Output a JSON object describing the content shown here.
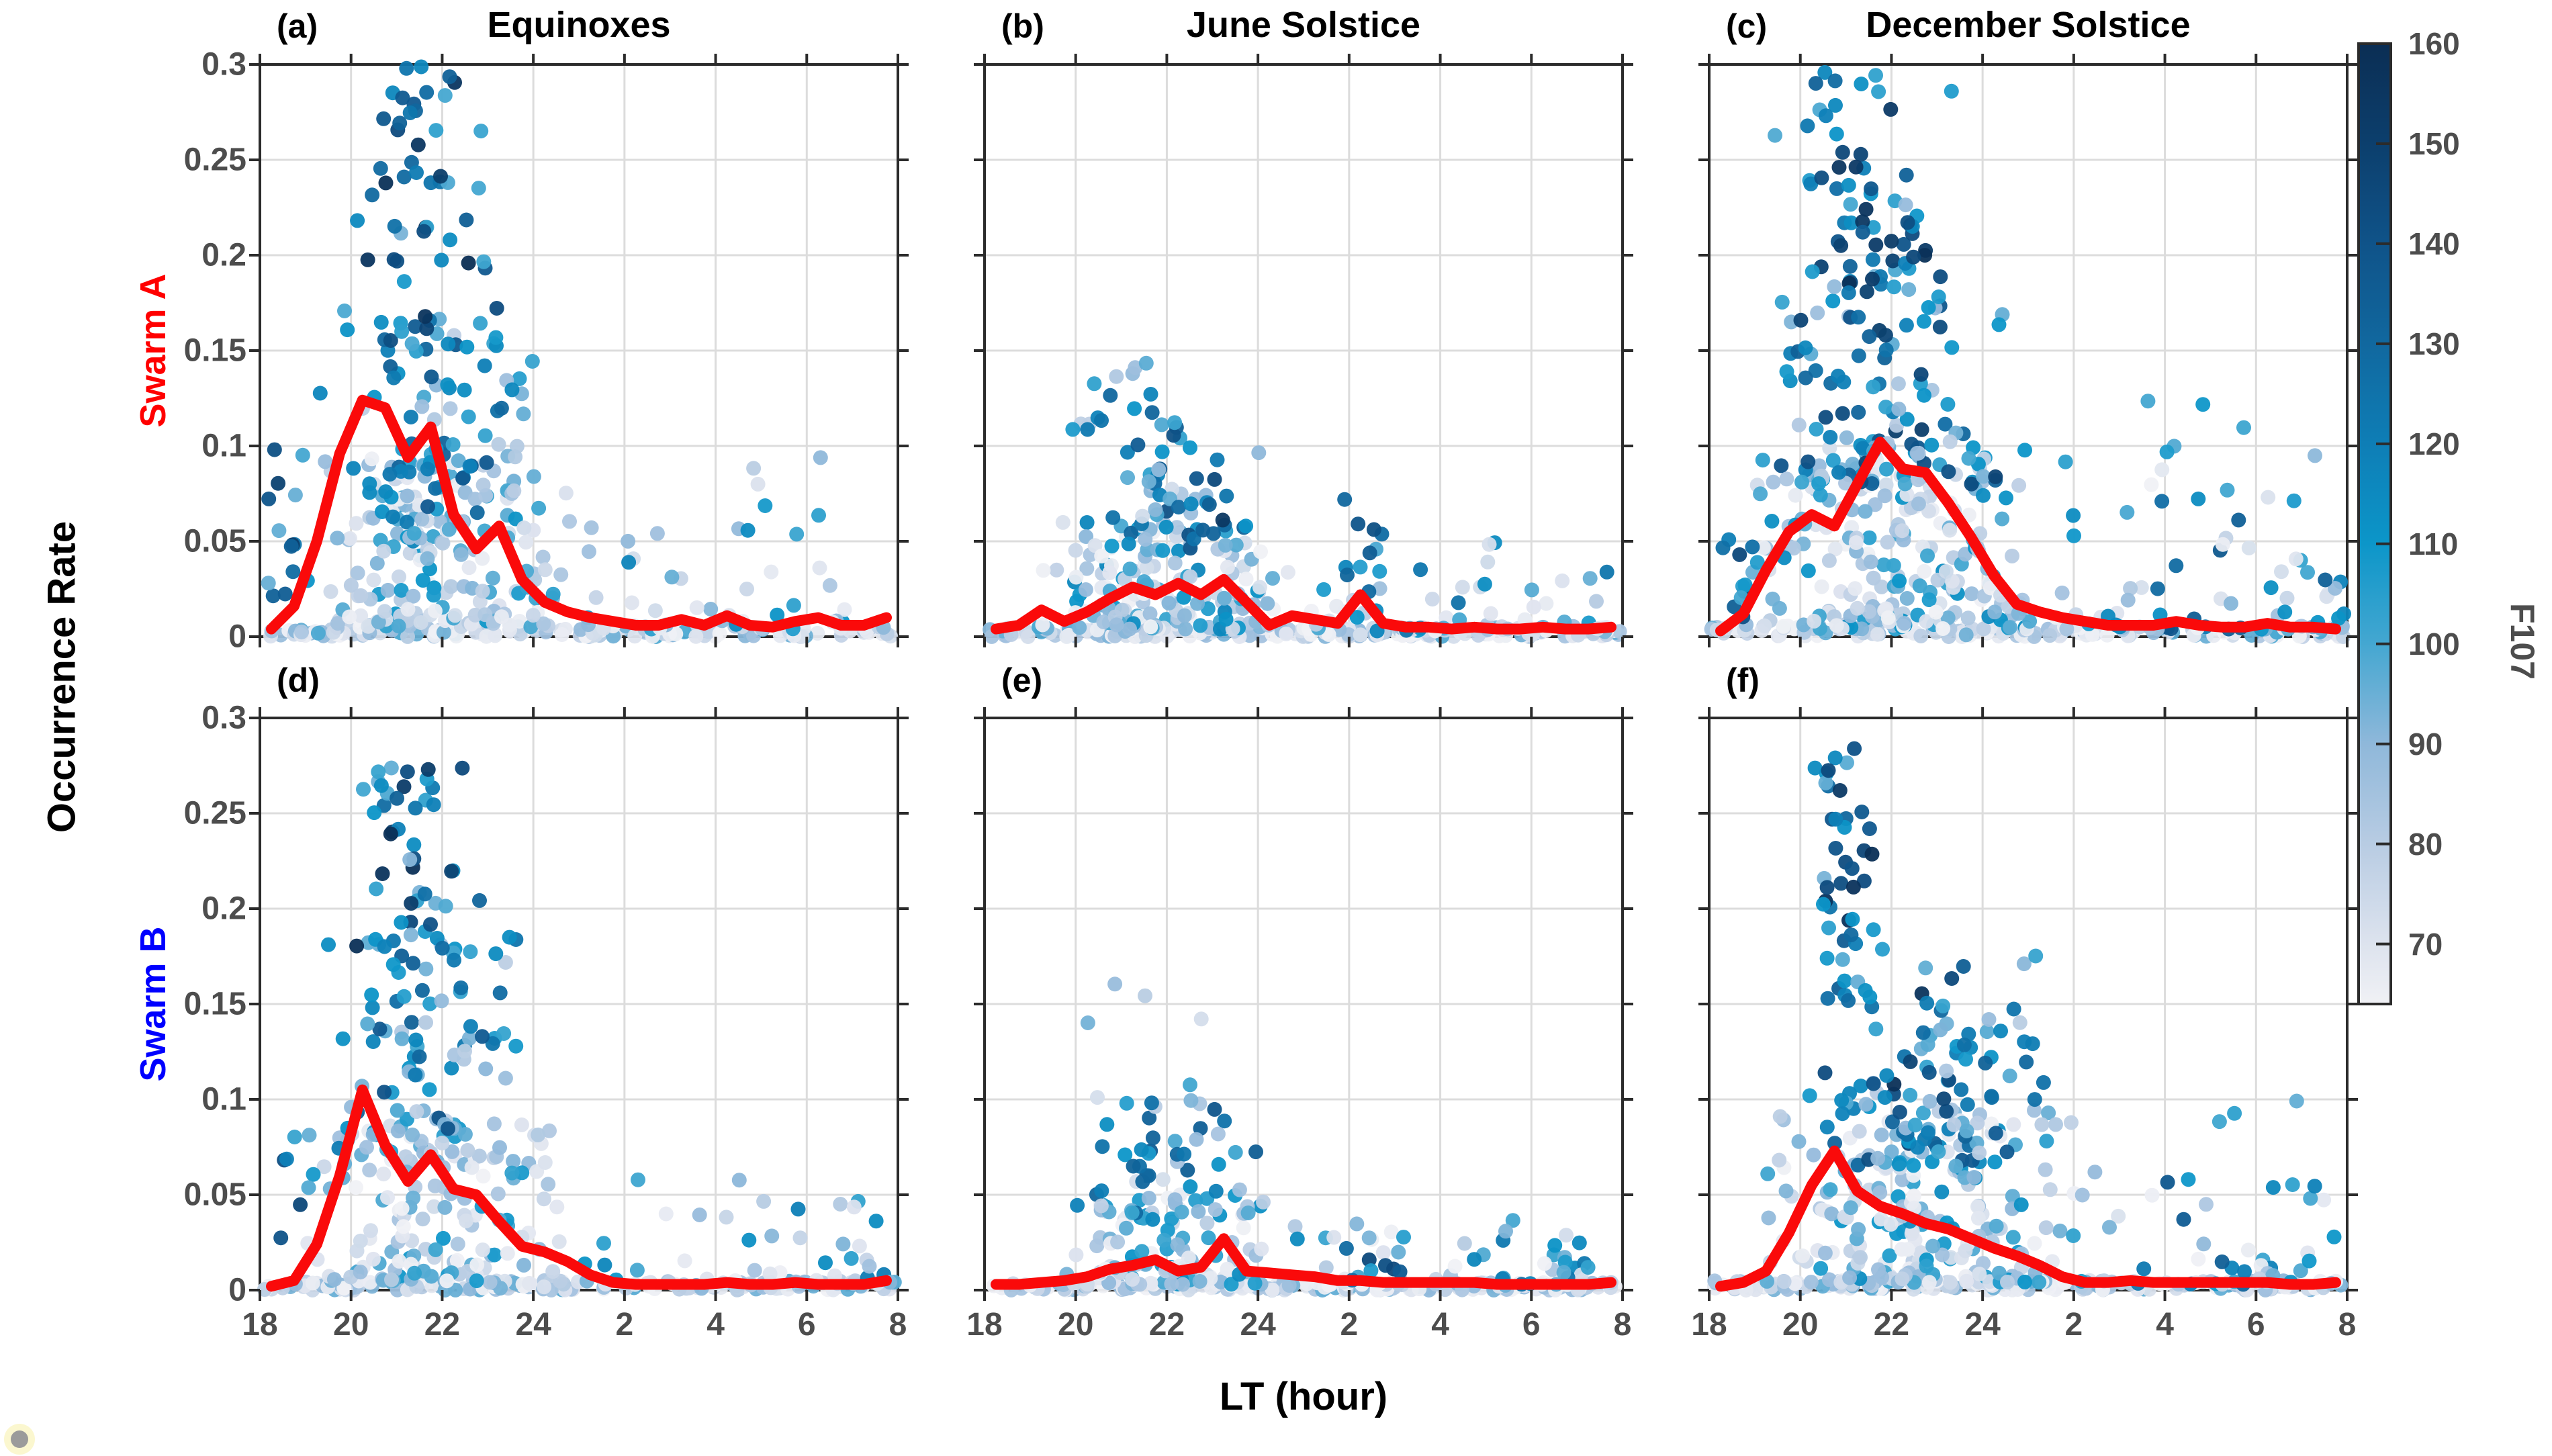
{
  "chart_data": {
    "type": "scatter",
    "xlabel": "LT (hour)",
    "ylabel": "Occurrence Rate",
    "xlim": [
      18,
      32
    ],
    "ylim": [
      0,
      0.3
    ],
    "grid": true,
    "x_ticks": {
      "values": [
        18,
        20,
        22,
        24,
        26,
        28,
        30,
        32
      ],
      "labels": [
        "18",
        "20",
        "22",
        "24",
        "2",
        "4",
        "6",
        "8"
      ]
    },
    "y_ticks": {
      "values": [
        0,
        0.05,
        0.1,
        0.15,
        0.2,
        0.25,
        0.3
      ],
      "labels": [
        "0",
        "0.05",
        "0.1",
        "0.15",
        "0.2",
        "0.25",
        "0.3"
      ]
    },
    "rows": [
      {
        "label": "Swarm A",
        "color": "#ff0000"
      },
      {
        "label": "Swarm B",
        "color": "#0000ff"
      }
    ],
    "columns": [
      {
        "title": "Equinoxes"
      },
      {
        "title": "June Solstice"
      },
      {
        "title": "December Solstice"
      }
    ],
    "colors": {
      "axis": "#2b2b2b",
      "grid": "#dcdcdc",
      "tick_text": "#4d4d4d",
      "red_line": "#fa0a0a",
      "background": "#ffffff"
    },
    "colorbar": {
      "label": "F107",
      "min": 64,
      "max": 160,
      "tick_values": [
        70,
        80,
        90,
        100,
        110,
        120,
        130,
        140,
        150,
        160
      ],
      "tick_labels": [
        "70",
        "80",
        "90",
        "100",
        "110",
        "120",
        "130",
        "140",
        "150",
        "160"
      ],
      "stops": [
        [
          64,
          "#f0f1f5"
        ],
        [
          70,
          "#dde3ee"
        ],
        [
          80,
          "#b8cce3"
        ],
        [
          90,
          "#8fb8da"
        ],
        [
          100,
          "#44a7d1"
        ],
        [
          110,
          "#0c96c9"
        ],
        [
          120,
          "#0e7eb6"
        ],
        [
          130,
          "#11689f"
        ],
        [
          140,
          "#0f5389"
        ],
        [
          150,
          "#0c3f6d"
        ],
        [
          160,
          "#0b2e54"
        ]
      ]
    },
    "red_line_x": [
      18.25,
      18.75,
      19.25,
      19.75,
      20.25,
      20.75,
      21.25,
      21.75,
      22.25,
      22.75,
      23.25,
      23.75,
      24.25,
      24.75,
      25.25,
      25.75,
      26.25,
      26.75,
      27.25,
      27.75,
      28.25,
      28.75,
      29.25,
      29.75,
      30.25,
      30.75,
      31.25,
      31.75
    ],
    "panels": [
      {
        "letter": "(a)",
        "row": 0,
        "col": 0,
        "seed": 101,
        "red_line_y": [
          0.004,
          0.016,
          0.05,
          0.096,
          0.124,
          0.12,
          0.094,
          0.11,
          0.064,
          0.046,
          0.058,
          0.03,
          0.018,
          0.013,
          0.01,
          0.008,
          0.006,
          0.006,
          0.009,
          0.006,
          0.011,
          0.006,
          0.005,
          0.008,
          0.01,
          0.006,
          0.006,
          0.01
        ],
        "scatter_clusters": [
          {
            "n": 160,
            "lt": [
              18.05,
              31.95
            ],
            "m": "u",
            "r": [
              0.0,
              0.006
            ],
            "rp": 1.2,
            "f": [
              64,
              100
            ],
            "fp": 1.6
          },
          {
            "n": 170,
            "lt": [
              18.9,
              25.2
            ],
            "m": "c",
            "r": [
              0.005,
              0.095
            ],
            "rp": 1.6,
            "f": [
              64,
              112
            ],
            "fp": 1.3
          },
          {
            "n": 95,
            "lt": [
              19.2,
              24.6
            ],
            "m": "c",
            "r": [
              0.05,
              0.175
            ],
            "rp": 1.3,
            "f": [
              78,
              138
            ],
            "fp": 1.1
          },
          {
            "n": 55,
            "lt": [
              19.4,
              23.4
            ],
            "m": "c",
            "r": [
              0.15,
              0.3
            ],
            "rp": 1.15,
            "f": [
              92,
              160
            ],
            "fp": 0.85
          },
          {
            "n": 45,
            "lt": [
              24.6,
              31.9
            ],
            "m": "u",
            "r": [
              0.004,
              0.095
            ],
            "rp": 2.2,
            "f": [
              66,
              122
            ],
            "fp": 1.4
          },
          {
            "n": 14,
            "lt": [
              18.1,
              19.1
            ],
            "m": "u",
            "r": [
              0.02,
              0.1
            ],
            "rp": 1.2,
            "f": [
              88,
              152
            ],
            "fp": 1.0
          }
        ]
      },
      {
        "letter": "(b)",
        "row": 0,
        "col": 1,
        "seed": 202,
        "red_line_y": [
          0.004,
          0.006,
          0.014,
          0.008,
          0.013,
          0.02,
          0.026,
          0.022,
          0.028,
          0.022,
          0.03,
          0.018,
          0.006,
          0.011,
          0.009,
          0.007,
          0.022,
          0.007,
          0.005,
          0.005,
          0.004,
          0.005,
          0.004,
          0.004,
          0.005,
          0.004,
          0.004,
          0.005
        ],
        "scatter_clusters": [
          {
            "n": 200,
            "lt": [
              18.05,
              31.95
            ],
            "m": "u",
            "r": [
              0.0,
              0.005
            ],
            "rp": 1.2,
            "f": [
              64,
              98
            ],
            "fp": 1.6
          },
          {
            "n": 150,
            "lt": [
              18.9,
              24.9
            ],
            "m": "c",
            "r": [
              0.004,
              0.06
            ],
            "rp": 1.7,
            "f": [
              64,
              118
            ],
            "fp": 1.4
          },
          {
            "n": 60,
            "lt": [
              19.7,
              24.4
            ],
            "m": "c",
            "r": [
              0.045,
              0.115
            ],
            "rp": 1.3,
            "f": [
              72,
              142
            ],
            "fp": 1.1
          },
          {
            "n": 12,
            "lt": [
              20.2,
              21.7
            ],
            "m": "u",
            "r": [
              0.108,
              0.148
            ],
            "rp": 1.0,
            "f": [
              78,
              138
            ],
            "fp": 1.0
          },
          {
            "n": 55,
            "lt": [
              24.9,
              31.95
            ],
            "m": "u",
            "r": [
              0.003,
              0.05
            ],
            "rp": 2.2,
            "f": [
              64,
              128
            ],
            "fp": 1.5
          },
          {
            "n": 9,
            "lt": [
              25.8,
              27.0
            ],
            "m": "u",
            "r": [
              0.01,
              0.075
            ],
            "rp": 1.3,
            "f": [
              96,
              152
            ],
            "fp": 0.9
          },
          {
            "n": 8,
            "lt": [
              22.5,
              23.5
            ],
            "m": "u",
            "r": [
              0.055,
              0.085
            ],
            "rp": 1.0,
            "f": [
              110,
              160
            ],
            "fp": 0.8
          }
        ]
      },
      {
        "letter": "(c)",
        "row": 0,
        "col": 2,
        "seed": 303,
        "red_line_y": [
          0.003,
          0.012,
          0.035,
          0.055,
          0.064,
          0.058,
          0.08,
          0.102,
          0.088,
          0.086,
          0.07,
          0.052,
          0.032,
          0.017,
          0.013,
          0.01,
          0.008,
          0.006,
          0.006,
          0.006,
          0.008,
          0.006,
          0.005,
          0.005,
          0.007,
          0.005,
          0.005,
          0.004
        ],
        "scatter_clusters": [
          {
            "n": 150,
            "lt": [
              18.05,
              31.95
            ],
            "m": "u",
            "r": [
              0.0,
              0.006
            ],
            "rp": 1.2,
            "f": [
              64,
              100
            ],
            "fp": 1.6
          },
          {
            "n": 230,
            "lt": [
              18.6,
              25.6
            ],
            "m": "c",
            "r": [
              0.004,
              0.1
            ],
            "rp": 1.6,
            "f": [
              64,
              115
            ],
            "fp": 1.3
          },
          {
            "n": 115,
            "lt": [
              19.0,
              24.8
            ],
            "m": "c",
            "r": [
              0.08,
              0.195
            ],
            "rp": 1.25,
            "f": [
              78,
              150
            ],
            "fp": 1.0
          },
          {
            "n": 60,
            "lt": [
              19.2,
              23.6
            ],
            "m": "c",
            "r": [
              0.18,
              0.3
            ],
            "rp": 1.1,
            "f": [
              88,
              160
            ],
            "fp": 0.9
          },
          {
            "n": 70,
            "lt": [
              25.6,
              31.95
            ],
            "m": "u",
            "r": [
              0.004,
              0.1
            ],
            "rp": 2.4,
            "f": [
              64,
              140
            ],
            "fp": 1.3
          },
          {
            "n": 10,
            "lt": [
              18.2,
              19.0
            ],
            "m": "u",
            "r": [
              0.01,
              0.06
            ],
            "rp": 1.2,
            "f": [
              90,
              155
            ],
            "fp": 0.9
          },
          {
            "n": 3,
            "lt": [
              27.2,
              30.4
            ],
            "m": "u",
            "r": [
              0.1,
              0.16
            ],
            "rp": 1.0,
            "f": [
              98,
              112
            ],
            "fp": 1.0
          }
        ]
      },
      {
        "letter": "(d)",
        "row": 1,
        "col": 0,
        "seed": 404,
        "red_line_y": [
          0.002,
          0.005,
          0.024,
          0.06,
          0.105,
          0.076,
          0.057,
          0.071,
          0.053,
          0.05,
          0.036,
          0.023,
          0.02,
          0.015,
          0.008,
          0.004,
          0.003,
          0.003,
          0.003,
          0.003,
          0.004,
          0.003,
          0.003,
          0.004,
          0.003,
          0.003,
          0.003,
          0.005
        ],
        "scatter_clusters": [
          {
            "n": 170,
            "lt": [
              18.05,
              31.95
            ],
            "m": "u",
            "r": [
              0.0,
              0.005
            ],
            "rp": 1.2,
            "f": [
              64,
              98
            ],
            "fp": 1.6
          },
          {
            "n": 150,
            "lt": [
              18.8,
              24.9
            ],
            "m": "c",
            "r": [
              0.004,
              0.09
            ],
            "rp": 1.6,
            "f": [
              64,
              110
            ],
            "fp": 1.3
          },
          {
            "n": 85,
            "lt": [
              19.3,
              24.0
            ],
            "m": "c",
            "r": [
              0.07,
              0.185
            ],
            "rp": 1.25,
            "f": [
              78,
              142
            ],
            "fp": 1.05
          },
          {
            "n": 50,
            "lt": [
              19.5,
              23.0
            ],
            "m": "c",
            "r": [
              0.17,
              0.275
            ],
            "rp": 1.1,
            "f": [
              88,
              160
            ],
            "fp": 0.9
          },
          {
            "n": 40,
            "lt": [
              24.9,
              31.95
            ],
            "m": "u",
            "r": [
              0.004,
              0.06
            ],
            "rp": 2.2,
            "f": [
              64,
              122
            ],
            "fp": 1.4
          },
          {
            "n": 8,
            "lt": [
              18.3,
              19.2
            ],
            "m": "u",
            "r": [
              0.02,
              0.085
            ],
            "rp": 1.2,
            "f": [
              92,
              150
            ],
            "fp": 0.9
          },
          {
            "n": 1,
            "lt": [
              28.5,
              28.7
            ],
            "m": "u",
            "r": [
              0.055,
              0.06
            ],
            "rp": 1.0,
            "f": [
              88,
              92
            ],
            "fp": 1.0
          }
        ]
      },
      {
        "letter": "(e)",
        "row": 1,
        "col": 1,
        "seed": 505,
        "red_line_y": [
          0.003,
          0.003,
          0.004,
          0.005,
          0.007,
          0.011,
          0.013,
          0.016,
          0.01,
          0.012,
          0.027,
          0.01,
          0.009,
          0.008,
          0.007,
          0.005,
          0.005,
          0.004,
          0.004,
          0.004,
          0.004,
          0.004,
          0.003,
          0.003,
          0.003,
          0.003,
          0.003,
          0.004
        ],
        "scatter_clusters": [
          {
            "n": 200,
            "lt": [
              18.05,
              31.95
            ],
            "m": "u",
            "r": [
              0.0,
              0.004
            ],
            "rp": 1.2,
            "f": [
              64,
              96
            ],
            "fp": 1.6
          },
          {
            "n": 115,
            "lt": [
              19.2,
              24.7
            ],
            "m": "c",
            "r": [
              0.003,
              0.05
            ],
            "rp": 1.7,
            "f": [
              64,
              116
            ],
            "fp": 1.4
          },
          {
            "n": 48,
            "lt": [
              19.7,
              24.2
            ],
            "m": "c",
            "r": [
              0.04,
              0.1
            ],
            "rp": 1.35,
            "f": [
              72,
              140
            ],
            "fp": 1.1
          },
          {
            "n": 6,
            "lt": [
              20.2,
              23.1
            ],
            "m": "u",
            "r": [
              0.1,
              0.19
            ],
            "rp": 1.0,
            "f": [
              72,
              108
            ],
            "fp": 1.2
          },
          {
            "n": 50,
            "lt": [
              24.7,
              31.95
            ],
            "m": "u",
            "r": [
              0.003,
              0.04
            ],
            "rp": 2.2,
            "f": [
              64,
              130
            ],
            "fp": 1.5
          },
          {
            "n": 6,
            "lt": [
              25.9,
              27.3
            ],
            "m": "u",
            "r": [
              0.008,
              0.035
            ],
            "rp": 1.2,
            "f": [
              98,
              148
            ],
            "fp": 0.9
          }
        ]
      },
      {
        "letter": "(f)",
        "row": 1,
        "col": 2,
        "seed": 606,
        "red_line_y": [
          0.002,
          0.004,
          0.01,
          0.03,
          0.055,
          0.073,
          0.052,
          0.044,
          0.04,
          0.035,
          0.032,
          0.027,
          0.022,
          0.018,
          0.013,
          0.007,
          0.004,
          0.004,
          0.005,
          0.004,
          0.004,
          0.004,
          0.004,
          0.004,
          0.004,
          0.003,
          0.003,
          0.004
        ],
        "scatter_clusters": [
          {
            "n": 170,
            "lt": [
              18.05,
              31.95
            ],
            "m": "u",
            "r": [
              0.0,
              0.005
            ],
            "rp": 1.2,
            "f": [
              64,
              98
            ],
            "fp": 1.6
          },
          {
            "n": 220,
            "lt": [
              18.8,
              26.6
            ],
            "m": "c",
            "r": [
              0.004,
              0.095
            ],
            "rp": 1.6,
            "f": [
              64,
              115
            ],
            "fp": 1.3
          },
          {
            "n": 85,
            "lt": [
              19.6,
              25.9
            ],
            "m": "c",
            "r": [
              0.065,
              0.15
            ],
            "rp": 1.3,
            "f": [
              78,
              148
            ],
            "fp": 1.05
          },
          {
            "n": 45,
            "lt": [
              20.2,
              21.9
            ],
            "m": "c",
            "r": [
              0.15,
              0.29
            ],
            "rp": 1.1,
            "f": [
              92,
              160
            ],
            "fp": 0.85
          },
          {
            "n": 25,
            "lt": [
              21.8,
              25.6
            ],
            "m": "u",
            "r": [
              0.1,
              0.185
            ],
            "rp": 1.3,
            "f": [
              88,
              160
            ],
            "fp": 0.95
          },
          {
            "n": 45,
            "lt": [
              26.6,
              31.95
            ],
            "m": "u",
            "r": [
              0.003,
              0.06
            ],
            "rp": 2.4,
            "f": [
              64,
              138
            ],
            "fp": 1.4
          },
          {
            "n": 4,
            "lt": [
              26.6,
              31.2
            ],
            "m": "u",
            "r": [
              0.05,
              0.1
            ],
            "rp": 1.0,
            "f": [
              95,
              115
            ],
            "fp": 1.0
          }
        ]
      }
    ]
  },
  "decorations": {
    "corner_dot_color": "#9b9b9b",
    "corner_dot_halo": "#fbf7cf"
  }
}
